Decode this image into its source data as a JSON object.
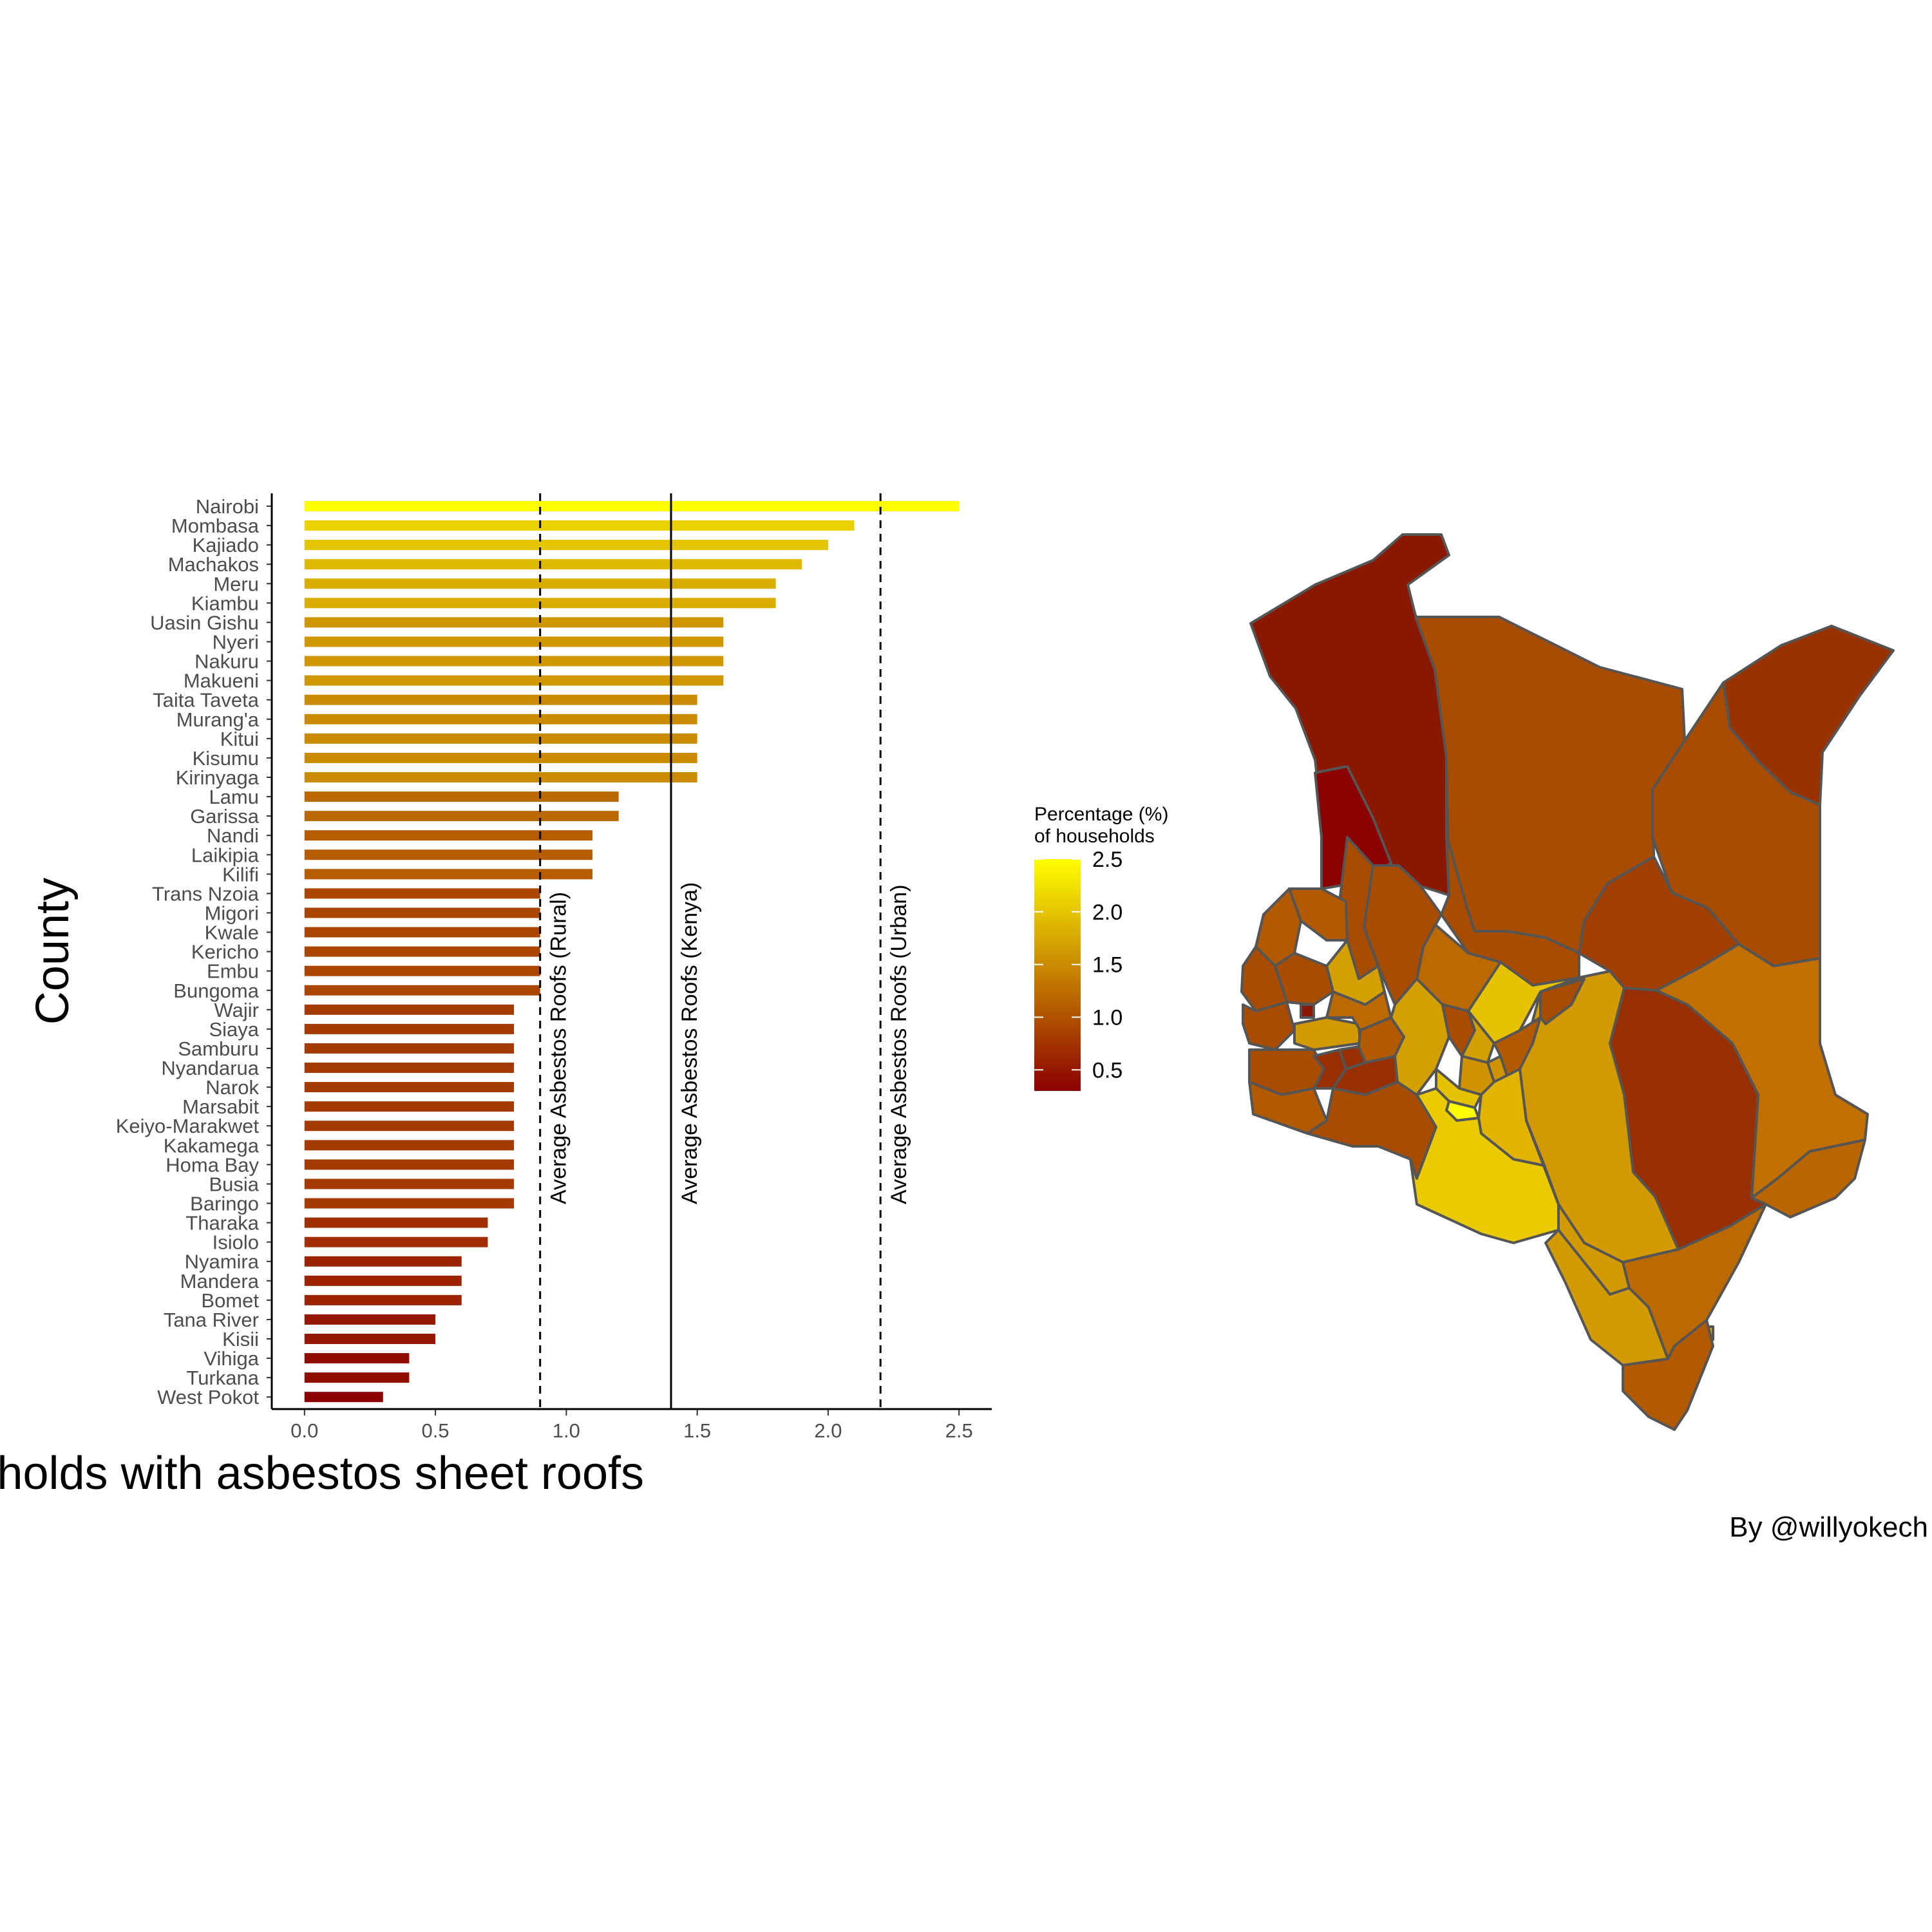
{
  "chart_data": {
    "type": "bar",
    "orientation": "horizontal",
    "xlabel": "Percentage (%) of households with asbestos sheet roofs",
    "ylabel": "County",
    "xlim": [
      -0.125,
      2.625
    ],
    "xticks": [
      0.0,
      0.5,
      1.0,
      1.5,
      2.0,
      2.5
    ],
    "xtick_labels": [
      "0.0",
      "0.5",
      "1.0",
      "1.5",
      "2.0",
      "2.5"
    ],
    "categories": [
      "Nairobi",
      "Mombasa",
      "Kajiado",
      "Machakos",
      "Meru",
      "Kiambu",
      "Uasin Gishu",
      "Nyeri",
      "Nakuru",
      "Makueni",
      "Taita Taveta",
      "Murang'a",
      "Kitui",
      "Kisumu",
      "Kirinyaga",
      "Lamu",
      "Garissa",
      "Nandi",
      "Laikipia",
      "Kilifi",
      "Trans Nzoia",
      "Migori",
      "Kwale",
      "Kericho",
      "Embu",
      "Bungoma",
      "Wajir",
      "Siaya",
      "Samburu",
      "Nyandarua",
      "Narok",
      "Marsabit",
      "Keiyo-Marakwet",
      "Kakamega",
      "Homa Bay",
      "Busia",
      "Baringo",
      "Tharaka",
      "Isiolo",
      "Nyamira",
      "Mandera",
      "Bomet",
      "Tana River",
      "Kisii",
      "Vihiga",
      "Turkana",
      "West Pokot"
    ],
    "values": [
      2.5,
      2.1,
      2.0,
      1.9,
      1.8,
      1.8,
      1.6,
      1.6,
      1.6,
      1.6,
      1.5,
      1.5,
      1.5,
      1.5,
      1.5,
      1.2,
      1.2,
      1.1,
      1.1,
      1.1,
      0.9,
      0.9,
      0.9,
      0.9,
      0.9,
      0.9,
      0.8,
      0.8,
      0.8,
      0.8,
      0.8,
      0.8,
      0.8,
      0.8,
      0.8,
      0.8,
      0.8,
      0.7,
      0.7,
      0.6,
      0.6,
      0.6,
      0.5,
      0.5,
      0.4,
      0.4,
      0.3
    ],
    "reference_lines": [
      {
        "label": "Average Asbestos Roofs (Rural)",
        "value": 0.9,
        "style": "dashed"
      },
      {
        "label": "Average Asbestos Roofs (Kenya)",
        "value": 1.4,
        "style": "solid"
      },
      {
        "label": "Average Asbestos Roofs (Urban)",
        "value": 2.2,
        "style": "dashed"
      }
    ],
    "color_scale": {
      "low": "#8B0000",
      "high": "#FFFF00",
      "domain": [
        0.3,
        2.5
      ]
    },
    "legend": {
      "title_line1": "Percentage (%)",
      "title_line2": "of households",
      "ticks": [
        2.5,
        2.0,
        1.5,
        1.0,
        0.5
      ],
      "tick_labels": [
        "2.5",
        "2.0",
        "1.5",
        "1.0",
        "0.5"
      ],
      "placement": "between bar chart and map"
    },
    "map": {
      "description": "choropleth of Kenya counties",
      "border_color": "#4d4d4d"
    }
  },
  "caption": "By @willyokech"
}
